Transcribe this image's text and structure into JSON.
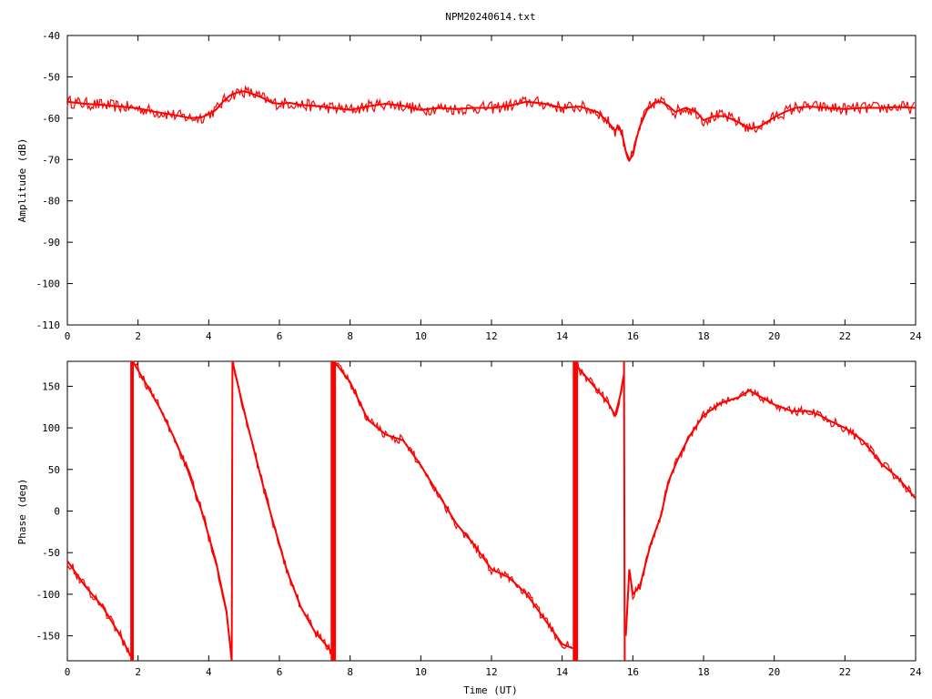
{
  "title": "NPM20240614.txt",
  "chart_data": [
    {
      "type": "line",
      "title": "NPM20240614.txt",
      "xlabel": "",
      "ylabel": "Amplitude (dB)",
      "xlim": [
        0,
        24
      ],
      "ylim": [
        -110,
        -40
      ],
      "xticks": [
        "0",
        "2",
        "4",
        "6",
        "8",
        "10",
        "12",
        "14",
        "16",
        "18",
        "20",
        "22",
        "24"
      ],
      "yticks": [
        "-40",
        "-50",
        "-60",
        "-70",
        "-80",
        "-90",
        "-100",
        "-110"
      ],
      "grid": false,
      "color": "#ff0000",
      "noise_band": 1.5,
      "x": [
        0,
        0.5,
        1,
        1.5,
        2,
        2.5,
        3,
        3.5,
        3.8,
        4,
        4.2,
        4.4,
        4.6,
        4.8,
        5,
        5.2,
        5.5,
        5.8,
        6,
        6.3,
        6.6,
        7,
        7.5,
        8,
        8.3,
        8.6,
        9,
        9.5,
        10,
        10.5,
        11,
        11.5,
        12,
        12.5,
        13,
        13.5,
        14,
        14.5,
        15,
        15.3,
        15.5,
        15.6,
        15.7,
        15.8,
        15.9,
        16,
        16.1,
        16.2,
        16.4,
        16.6,
        16.8,
        17,
        17.2,
        17.5,
        17.8,
        18,
        18.3,
        18.6,
        19,
        19.3,
        19.6,
        20,
        20.3,
        20.6,
        21,
        21.5,
        22,
        22.5,
        23,
        23.5,
        24
      ],
      "y": [
        -56,
        -56.5,
        -56.8,
        -57.2,
        -57.6,
        -58.5,
        -59.2,
        -60,
        -59.8,
        -59,
        -58,
        -56,
        -54.5,
        -53.8,
        -53.5,
        -54,
        -55,
        -56.3,
        -56.5,
        -56.3,
        -56.8,
        -57,
        -57.5,
        -58,
        -57.5,
        -57,
        -56.5,
        -57,
        -58,
        -57.5,
        -57.8,
        -57.5,
        -57.5,
        -57,
        -56,
        -56.5,
        -57.5,
        -57.2,
        -58.5,
        -61,
        -63,
        -62,
        -64,
        -68,
        -70,
        -69,
        -65,
        -62,
        -58,
        -56.3,
        -56,
        -57,
        -58.5,
        -57.5,
        -58.5,
        -60.5,
        -59.5,
        -59.5,
        -61,
        -62.5,
        -62,
        -59.8,
        -58.5,
        -57.5,
        -57.2,
        -57.5,
        -57.8,
        -57.5,
        -57.5,
        -57.3,
        -57.5
      ]
    },
    {
      "type": "line",
      "title": "",
      "xlabel": "Time (UT)",
      "ylabel": "Phase (deg)",
      "xlim": [
        0,
        24
      ],
      "ylim": [
        -180,
        180
      ],
      "xticks": [
        "0",
        "2",
        "4",
        "6",
        "8",
        "10",
        "12",
        "14",
        "16",
        "18",
        "20",
        "22",
        "24"
      ],
      "yticks": [
        "150",
        "100",
        "50",
        "0",
        "-50",
        "-100",
        "-150"
      ],
      "grid": false,
      "color": "#ff0000",
      "noise_band": 6,
      "wrap_bands": [
        [
          1.78,
          1.88
        ],
        [
          7.45,
          7.6
        ],
        [
          14.3,
          14.45
        ]
      ],
      "segments": [
        {
          "x": [
            0,
            0.5,
            1,
            1.5,
            1.8
          ],
          "y": [
            -60,
            -90,
            -115,
            -150,
            -175
          ]
        },
        {
          "x": [
            1.85,
            2.2,
            2.6,
            3,
            3.4,
            3.8,
            4.2,
            4.5,
            4.65
          ],
          "y": [
            180,
            155,
            125,
            90,
            50,
            0,
            -60,
            -120,
            -180
          ]
        },
        {
          "x": [
            4.65,
            4.67
          ],
          "y": [
            -180,
            180
          ]
        },
        {
          "x": [
            4.7,
            5,
            5.3,
            5.6,
            5.9,
            6.2,
            6.6,
            7,
            7.4,
            7.5
          ],
          "y": [
            175,
            120,
            70,
            20,
            -25,
            -70,
            -115,
            -145,
            -165,
            -172
          ]
        },
        {
          "x": [
            7.55,
            8,
            8.5,
            9,
            9.5,
            10,
            10.5,
            11,
            11.5,
            12,
            12.5,
            13,
            13.5,
            14,
            14.3
          ],
          "y": [
            180,
            155,
            110,
            92,
            85,
            55,
            20,
            -15,
            -40,
            -70,
            -80,
            -100,
            -130,
            -160,
            -165
          ]
        },
        {
          "x": [
            14.4,
            14.6,
            15,
            15.3,
            15.5,
            15.65,
            15.75
          ],
          "y": [
            175,
            165,
            145,
            130,
            115,
            140,
            165
          ]
        },
        {
          "x": [
            15.75,
            15.77
          ],
          "y": [
            180,
            -180
          ]
        },
        {
          "x": [
            15.8,
            15.9,
            16,
            16.2,
            16.5,
            16.8,
            17,
            17.3,
            17.6,
            18,
            18.5,
            19,
            19.3,
            19.5,
            20,
            20.5,
            21,
            21.3,
            21.5,
            22,
            22.5,
            23,
            23.5,
            24
          ],
          "y": [
            -150,
            -70,
            -100,
            -90,
            -40,
            -5,
            35,
            65,
            90,
            115,
            130,
            137,
            145,
            140,
            128,
            120,
            120,
            115,
            110,
            100,
            85,
            58,
            40,
            15
          ]
        }
      ]
    }
  ]
}
